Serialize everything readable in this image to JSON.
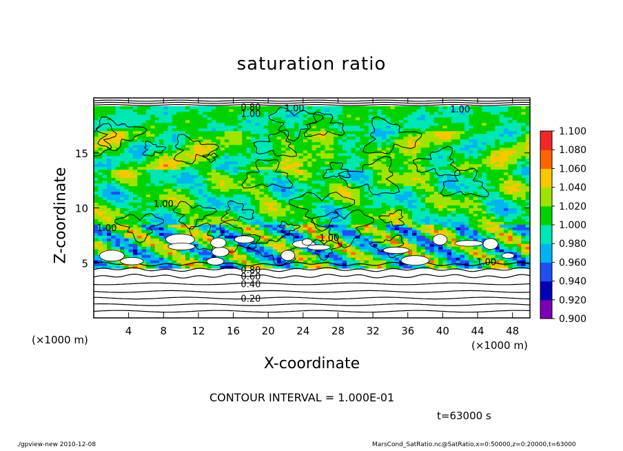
{
  "header": {
    "title": "saturation ratio"
  },
  "axes": {
    "xlabel": "X-coordinate",
    "ylabel": "Z-coordinate",
    "x_unit_left": "(×1000 m)",
    "x_unit_right": "(×1000 m)"
  },
  "annotations": {
    "contour_interval": "CONTOUR INTERVAL = 1.000E-01",
    "time": "t=63000 s"
  },
  "footer": {
    "left": "./gpview-new   2010-12-08",
    "right": "MarsCond_SatRatio.nc@SatRatio,x=0:50000,z=0:20000,t=63000"
  },
  "colors": {
    "v090": "#7a00b4",
    "v092": "#0000b4",
    "v094": "#1f4ff0",
    "v096": "#00b4f0",
    "v098": "#00e6b4",
    "v100": "#00d200",
    "v102": "#9ee400",
    "v104": "#f5c800",
    "v106": "#ff6400",
    "v108": "#f02828",
    "v110": "#ffa0a0",
    "supersat_max": "#ffffff"
  },
  "chart_data": {
    "type": "heatmap",
    "title": "saturation ratio",
    "xlabel": "X-coordinate",
    "ylabel": "Z-coordinate",
    "xlim": [
      0,
      50
    ],
    "ylim": [
      0,
      20
    ],
    "xticks": [
      4,
      8,
      12,
      16,
      20,
      24,
      28,
      32,
      36,
      40,
      44,
      48
    ],
    "yticks": [
      5,
      10,
      15
    ],
    "colorbar": {
      "levels": [
        0.9,
        0.92,
        0.94,
        0.96,
        0.98,
        1.0,
        1.02,
        1.04,
        1.06,
        1.08,
        1.1
      ],
      "labels": [
        "0.900",
        "0.920",
        "0.940",
        "0.960",
        "0.980",
        "1.000",
        "1.020",
        "1.040",
        "1.060",
        "1.080",
        "1.100"
      ]
    },
    "contours": [
      {
        "label": "0.20",
        "x": 18,
        "z": 1.8
      },
      {
        "label": "0.40",
        "x": 18,
        "z": 3.1
      },
      {
        "label": "0.60",
        "x": 18,
        "z": 3.8
      },
      {
        "label": "0.80",
        "x": 18,
        "z": 4.4
      },
      {
        "label": "0.80",
        "x": 18,
        "z": 19.2
      },
      {
        "label": "1.00",
        "x": 18,
        "z": 18.6
      },
      {
        "label": "1.00",
        "x": 23,
        "z": 19.1
      },
      {
        "label": "1.00",
        "x": 8,
        "z": 10.4
      },
      {
        "label": "1.00",
        "x": 1.5,
        "z": 8.2
      },
      {
        "label": "1.00",
        "x": 27,
        "z": 7.3
      },
      {
        "label": "1.00",
        "x": 45,
        "z": 5.1
      },
      {
        "label": "1.00",
        "x": 42,
        "z": 19.0
      }
    ],
    "contour_interval": 0.1,
    "time_s": 63000
  }
}
